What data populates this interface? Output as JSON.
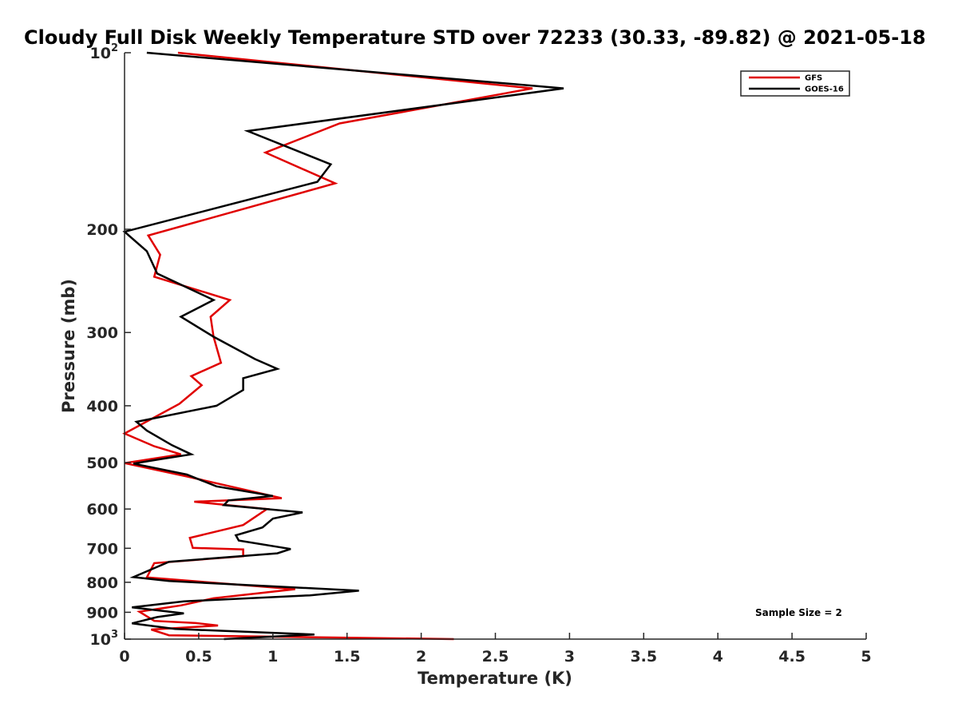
{
  "chart_data": {
    "type": "line",
    "title": "Cloudy Full Disk Weekly Temperature STD over 72233 (30.33, -89.82) @ 2021-05-18",
    "xlabel": "Temperature (K)",
    "ylabel": "Pressure (mb)",
    "xlim": [
      0,
      5
    ],
    "ylim": [
      100,
      1000
    ],
    "yscale": "log",
    "y_reversed": true,
    "grid": false,
    "legend_position": "top-right",
    "x_ticks": [
      "0",
      "0.5",
      "1",
      "1.5",
      "2",
      "2.5",
      "3",
      "3.5",
      "4",
      "4.5",
      "5"
    ],
    "x_tick_values": [
      0,
      0.5,
      1,
      1.5,
      2,
      2.5,
      3,
      3.5,
      4,
      4.5,
      5
    ],
    "y_ticks": [
      {
        "value": 100,
        "base": "10",
        "exp": "2"
      },
      {
        "value": 200,
        "label": "200"
      },
      {
        "value": 300,
        "label": "300"
      },
      {
        "value": 400,
        "label": "400"
      },
      {
        "value": 500,
        "label": "500"
      },
      {
        "value": 600,
        "label": "600"
      },
      {
        "value": 700,
        "label": "700"
      },
      {
        "value": 800,
        "label": "800"
      },
      {
        "value": 900,
        "label": "900"
      },
      {
        "value": 1000,
        "base": "10",
        "exp": "3"
      }
    ],
    "annotation": "Sample Size = 2",
    "series": [
      {
        "name": "GFS",
        "color": "#e00000",
        "points": [
          [
            0.36,
            100
          ],
          [
            2.75,
            115
          ],
          [
            1.45,
            132
          ],
          [
            0.95,
            148
          ],
          [
            1.42,
            167
          ],
          [
            0.16,
            205
          ],
          [
            0.24,
            221
          ],
          [
            0.2,
            241
          ],
          [
            0.71,
            264
          ],
          [
            0.58,
            282
          ],
          [
            0.6,
            305
          ],
          [
            0.65,
            338
          ],
          [
            0.45,
            356
          ],
          [
            0.52,
            369
          ],
          [
            0.37,
            397
          ],
          [
            0.0,
            446
          ],
          [
            0.2,
            469
          ],
          [
            0.38,
            484
          ],
          [
            0.0,
            501
          ],
          [
            0.42,
            528
          ],
          [
            1.06,
            575
          ],
          [
            0.47,
            583
          ],
          [
            0.96,
            600
          ],
          [
            0.8,
            639
          ],
          [
            0.44,
            672
          ],
          [
            0.46,
            699
          ],
          [
            0.8,
            703
          ],
          [
            0.8,
            722
          ],
          [
            0.2,
            742
          ],
          [
            0.15,
            785
          ],
          [
            1.15,
            822
          ],
          [
            0.6,
            852
          ],
          [
            0.38,
            876
          ],
          [
            0.1,
            898
          ],
          [
            0.2,
            931
          ],
          [
            0.48,
            939
          ],
          [
            0.63,
            948
          ],
          [
            0.18,
            963
          ],
          [
            0.3,
            985
          ],
          [
            2.22,
            1000
          ]
        ]
      },
      {
        "name": "GOES-16",
        "color": "#000000",
        "points": [
          [
            0.15,
            100
          ],
          [
            2.96,
            115
          ],
          [
            0.83,
            136
          ],
          [
            1.39,
            155
          ],
          [
            1.3,
            166
          ],
          [
            0.0,
            202
          ],
          [
            0.15,
            218
          ],
          [
            0.22,
            238
          ],
          [
            0.6,
            264
          ],
          [
            0.38,
            282
          ],
          [
            0.6,
            305
          ],
          [
            0.88,
            333
          ],
          [
            1.03,
            346
          ],
          [
            0.8,
            359
          ],
          [
            0.8,
            376
          ],
          [
            0.62,
            400
          ],
          [
            0.08,
            426
          ],
          [
            0.15,
            441
          ],
          [
            0.32,
            467
          ],
          [
            0.45,
            484
          ],
          [
            0.25,
            493
          ],
          [
            0.06,
            502
          ],
          [
            0.42,
            524
          ],
          [
            0.62,
            549
          ],
          [
            1.0,
            570
          ],
          [
            0.7,
            580
          ],
          [
            0.67,
            591
          ],
          [
            1.2,
            608
          ],
          [
            1.0,
            623
          ],
          [
            0.93,
            645
          ],
          [
            0.75,
            665
          ],
          [
            0.77,
            679
          ],
          [
            1.12,
            702
          ],
          [
            1.03,
            714
          ],
          [
            0.3,
            738
          ],
          [
            0.06,
            784
          ],
          [
            0.3,
            796
          ],
          [
            1.58,
            827
          ],
          [
            1.25,
            842
          ],
          [
            0.4,
            862
          ],
          [
            0.05,
            883
          ],
          [
            0.4,
            904
          ],
          [
            0.22,
            917
          ],
          [
            0.05,
            940
          ],
          [
            0.34,
            961
          ],
          [
            1.28,
            982
          ],
          [
            0.67,
            1000
          ]
        ]
      }
    ]
  }
}
